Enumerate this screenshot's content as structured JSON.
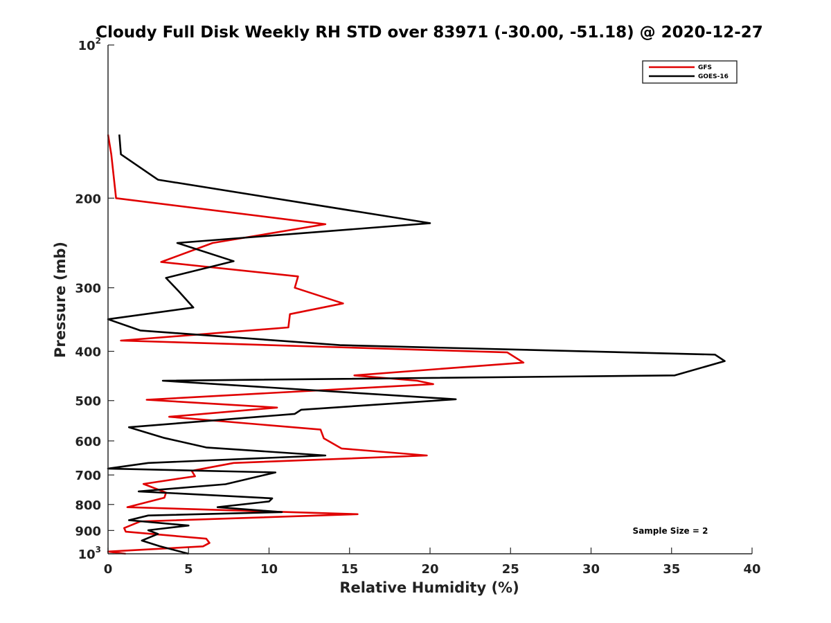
{
  "chart_data": {
    "type": "line",
    "title": "Cloudy Full Disk Weekly RH STD over 83971 (-30.00, -51.18) @ 2020-12-27",
    "xlabel": "Relative Humidity (%)",
    "ylabel": "Pressure (mb)",
    "xlim": [
      0,
      40
    ],
    "ylim": [
      100,
      1000
    ],
    "y_scale": "log",
    "y_reversed": true,
    "grid": false,
    "x_ticks": [
      0,
      5,
      10,
      15,
      20,
      25,
      30,
      35,
      40
    ],
    "y_ticks": [
      {
        "value": 100,
        "base": "10",
        "exp": "2"
      },
      {
        "value": 200,
        "label": "200"
      },
      {
        "value": 300,
        "label": "300"
      },
      {
        "value": 400,
        "label": "400"
      },
      {
        "value": 500,
        "label": "500"
      },
      {
        "value": 600,
        "label": "600"
      },
      {
        "value": 700,
        "label": "700"
      },
      {
        "value": 800,
        "label": "800"
      },
      {
        "value": 900,
        "label": "900"
      },
      {
        "value": 1000,
        "base": "10",
        "exp": "3"
      }
    ],
    "legend_position": "top-right",
    "annotation": "Sample Size = 2",
    "series": [
      {
        "name": "GFS",
        "color": "#e00000",
        "points": [
          [
            0.0,
            150
          ],
          [
            0.2,
            164
          ],
          [
            0.5,
            200
          ],
          [
            13.5,
            225
          ],
          [
            6.5,
            245
          ],
          [
            3.3,
            267
          ],
          [
            11.8,
            285
          ],
          [
            11.6,
            300
          ],
          [
            14.6,
            322
          ],
          [
            11.3,
            338
          ],
          [
            11.2,
            359
          ],
          [
            0.8,
            381
          ],
          [
            24.8,
            402
          ],
          [
            25.8,
            421
          ],
          [
            15.3,
            446
          ],
          [
            19.2,
            457
          ],
          [
            20.2,
            464
          ],
          [
            2.4,
            498
          ],
          [
            10.5,
            516
          ],
          [
            3.8,
            538
          ],
          [
            13.2,
            570
          ],
          [
            13.4,
            593
          ],
          [
            14.5,
            621
          ],
          [
            19.8,
            641
          ],
          [
            7.8,
            663
          ],
          [
            5.2,
            687
          ],
          [
            5.4,
            704
          ],
          [
            2.2,
            729
          ],
          [
            3.6,
            758
          ],
          [
            3.5,
            776
          ],
          [
            1.2,
            810
          ],
          [
            15.5,
            836
          ],
          [
            2.0,
            864
          ],
          [
            1.0,
            890
          ],
          [
            1.1,
            905
          ],
          [
            6.1,
            934
          ],
          [
            6.3,
            952
          ],
          [
            5.9,
            967
          ],
          [
            0.0,
            990
          ],
          [
            1.1,
            1000
          ]
        ]
      },
      {
        "name": "GOES-16",
        "color": "#000000",
        "points": [
          [
            0.7,
            150
          ],
          [
            0.8,
            164
          ],
          [
            3.1,
            184
          ],
          [
            20.0,
            224
          ],
          [
            4.3,
            245
          ],
          [
            7.8,
            266
          ],
          [
            3.6,
            287
          ],
          [
            4.4,
            305
          ],
          [
            5.3,
            328
          ],
          [
            0.0,
            346
          ],
          [
            2.0,
            364
          ],
          [
            14.4,
            389
          ],
          [
            37.7,
            406
          ],
          [
            38.3,
            418
          ],
          [
            35.2,
            446
          ],
          [
            3.4,
            457
          ],
          [
            21.6,
            497
          ],
          [
            12.0,
            521
          ],
          [
            11.6,
            531
          ],
          [
            1.3,
            564
          ],
          [
            3.5,
            592
          ],
          [
            6.1,
            618
          ],
          [
            13.5,
            641
          ],
          [
            2.5,
            663
          ],
          [
            0.0,
            680
          ],
          [
            10.4,
            692
          ],
          [
            7.3,
            730
          ],
          [
            1.9,
            754
          ],
          [
            10.2,
            778
          ],
          [
            10.0,
            789
          ],
          [
            6.8,
            810
          ],
          [
            10.8,
            828
          ],
          [
            2.5,
            841
          ],
          [
            1.3,
            859
          ],
          [
            5.0,
            880
          ],
          [
            2.5,
            899
          ],
          [
            3.1,
            914
          ],
          [
            2.1,
            942
          ],
          [
            3.2,
            966
          ],
          [
            5.0,
            1000
          ]
        ]
      }
    ]
  }
}
